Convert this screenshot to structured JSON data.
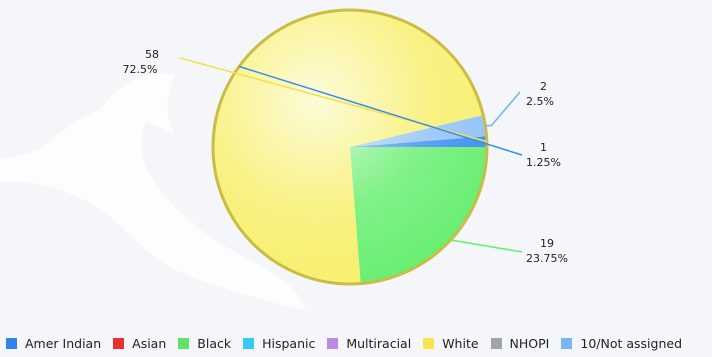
{
  "chart_data": {
    "type": "pie",
    "title": "",
    "total": 80,
    "slices": [
      {
        "name": "Amer Indian",
        "value": 1,
        "percent": "1.25%",
        "color": "#3a8df0"
      },
      {
        "name": "10/Not assigned",
        "value": 2,
        "percent": "2.5%",
        "color": "#8fc1f8"
      },
      {
        "name": "White",
        "value": 58,
        "percent": "72.5%",
        "color": "#f7ef6a"
      },
      {
        "name": "Black",
        "value": 19,
        "percent": "23.75%",
        "color": "#66ee6f"
      }
    ],
    "data_labels": [
      {
        "value_text": "58",
        "percent_text": "72.5%",
        "line_color": "#f2e24a"
      },
      {
        "value_text": "2",
        "percent_text": "2.5%",
        "line_color": "#6fb3f6"
      },
      {
        "value_text": "1",
        "percent_text": "1.25%",
        "line_color": "#3a8df0"
      },
      {
        "value_text": "19",
        "percent_text": "23.75%",
        "line_color": "#66ee6f"
      }
    ],
    "legend": [
      {
        "label": "Amer Indian",
        "color": "#2f86ea"
      },
      {
        "label": "Asian",
        "color": "#ee2f2f"
      },
      {
        "label": "Black",
        "color": "#5fe268"
      },
      {
        "label": "Hispanic",
        "color": "#35cbf5"
      },
      {
        "label": "Multiracial",
        "color": "#bb8be4"
      },
      {
        "label": "White",
        "color": "#f6e64f"
      },
      {
        "label": "NHOPI",
        "color": "#a0a4a8"
      },
      {
        "label": "10/Not assigned",
        "color": "#7ab6f4"
      }
    ],
    "legend_position": "bottom"
  }
}
